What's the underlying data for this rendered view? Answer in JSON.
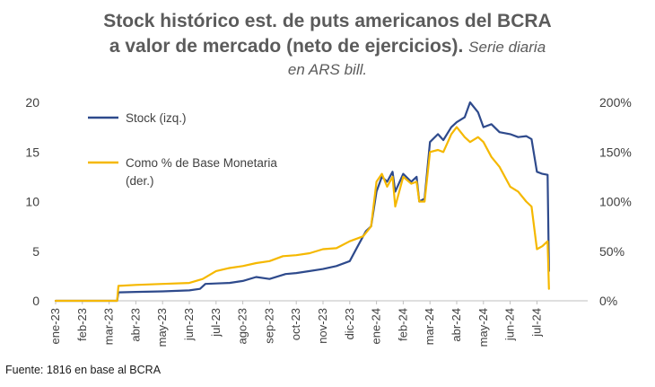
{
  "title_line1": "Stock histórico est. de puts americanos del BCRA",
  "title_line2": "a valor de mercado (neto de ejercicios).",
  "subtitle_part1": "Serie diaria",
  "subtitle_part2": "en ARS bill.",
  "source": "Fuente: 1816 en base al BCRA",
  "colors": {
    "stock": "#2e4a8c",
    "pct": "#f5b800"
  },
  "chart_data": {
    "type": "line",
    "title": "Stock histórico est. de puts americanos del BCRA a valor de mercado (neto de ejercicios). Serie diaria en ARS bill.",
    "x_ticks": [
      "ene-23",
      "feb-23",
      "mar-23",
      "abr-23",
      "may-23",
      "jun-23",
      "jul-23",
      "ago-23",
      "sep-23",
      "oct-23",
      "nov-23",
      "dic-23",
      "ene-24",
      "feb-24",
      "mar-24",
      "abr-24",
      "may-24",
      "jun-24",
      "jul-24"
    ],
    "x_units": "months since ene-23",
    "y_left": {
      "ylim": [
        0,
        20
      ],
      "ticks": [
        "0",
        "5",
        "10",
        "15",
        "20"
      ]
    },
    "y_right": {
      "ylim": [
        0,
        200
      ],
      "ticks": [
        "0%",
        "50%",
        "100%",
        "150%",
        "200%"
      ]
    },
    "legend": "top-left",
    "series": [
      {
        "name": "Stock (izq.)",
        "axis": "left",
        "points": [
          [
            0,
            0
          ],
          [
            2.3,
            0
          ],
          [
            2.35,
            0.85
          ],
          [
            3,
            0.9
          ],
          [
            4,
            0.95
          ],
          [
            5,
            1.05
          ],
          [
            5.4,
            1.2
          ],
          [
            5.6,
            1.7
          ],
          [
            6,
            1.75
          ],
          [
            6.5,
            1.8
          ],
          [
            7,
            2.0
          ],
          [
            7.5,
            2.4
          ],
          [
            8,
            2.2
          ],
          [
            8.6,
            2.7
          ],
          [
            9,
            2.8
          ],
          [
            9.5,
            3.0
          ],
          [
            10,
            3.2
          ],
          [
            10.5,
            3.5
          ],
          [
            11,
            4.0
          ],
          [
            11.3,
            5.5
          ],
          [
            11.6,
            7.0
          ],
          [
            11.8,
            7.5
          ],
          [
            12,
            11.0
          ],
          [
            12.2,
            12.5
          ],
          [
            12.4,
            12.0
          ],
          [
            12.6,
            13.0
          ],
          [
            12.7,
            11.0
          ],
          [
            13,
            12.8
          ],
          [
            13.3,
            12.0
          ],
          [
            13.5,
            12.5
          ],
          [
            13.6,
            10.0
          ],
          [
            13.8,
            10.3
          ],
          [
            14,
            16.0
          ],
          [
            14.3,
            16.8
          ],
          [
            14.5,
            16.2
          ],
          [
            14.8,
            17.5
          ],
          [
            15,
            18.0
          ],
          [
            15.3,
            18.5
          ],
          [
            15.5,
            20.0
          ],
          [
            15.8,
            19.0
          ],
          [
            16,
            17.5
          ],
          [
            16.3,
            17.8
          ],
          [
            16.6,
            17.0
          ],
          [
            17,
            16.8
          ],
          [
            17.3,
            16.5
          ],
          [
            17.6,
            16.6
          ],
          [
            17.8,
            16.3
          ],
          [
            18,
            13.0
          ],
          [
            18.2,
            12.8
          ],
          [
            18.4,
            12.7
          ],
          [
            18.45,
            3.0
          ]
        ]
      },
      {
        "name": "Como % de Base Monetaria (der.)",
        "axis": "right",
        "points": [
          [
            0,
            0
          ],
          [
            2.3,
            0
          ],
          [
            2.35,
            15
          ],
          [
            3,
            16
          ],
          [
            4,
            17
          ],
          [
            5,
            18
          ],
          [
            5.5,
            22
          ],
          [
            6,
            30
          ],
          [
            6.5,
            33
          ],
          [
            7,
            35
          ],
          [
            7.5,
            38
          ],
          [
            8,
            40
          ],
          [
            8.5,
            45
          ],
          [
            9,
            46
          ],
          [
            9.5,
            48
          ],
          [
            10,
            52
          ],
          [
            10.5,
            53
          ],
          [
            11,
            60
          ],
          [
            11.5,
            65
          ],
          [
            11.8,
            75
          ],
          [
            12,
            120
          ],
          [
            12.2,
            128
          ],
          [
            12.4,
            115
          ],
          [
            12.6,
            125
          ],
          [
            12.7,
            95
          ],
          [
            13,
            125
          ],
          [
            13.3,
            118
          ],
          [
            13.5,
            120
          ],
          [
            13.6,
            100
          ],
          [
            13.8,
            100
          ],
          [
            14,
            150
          ],
          [
            14.3,
            152
          ],
          [
            14.5,
            150
          ],
          [
            14.8,
            168
          ],
          [
            15,
            175
          ],
          [
            15.3,
            165
          ],
          [
            15.5,
            160
          ],
          [
            15.8,
            165
          ],
          [
            16,
            160
          ],
          [
            16.3,
            145
          ],
          [
            16.6,
            135
          ],
          [
            17,
            115
          ],
          [
            17.3,
            110
          ],
          [
            17.6,
            100
          ],
          [
            17.8,
            95
          ],
          [
            18,
            52
          ],
          [
            18.2,
            55
          ],
          [
            18.4,
            60
          ],
          [
            18.45,
            12
          ]
        ]
      }
    ]
  }
}
